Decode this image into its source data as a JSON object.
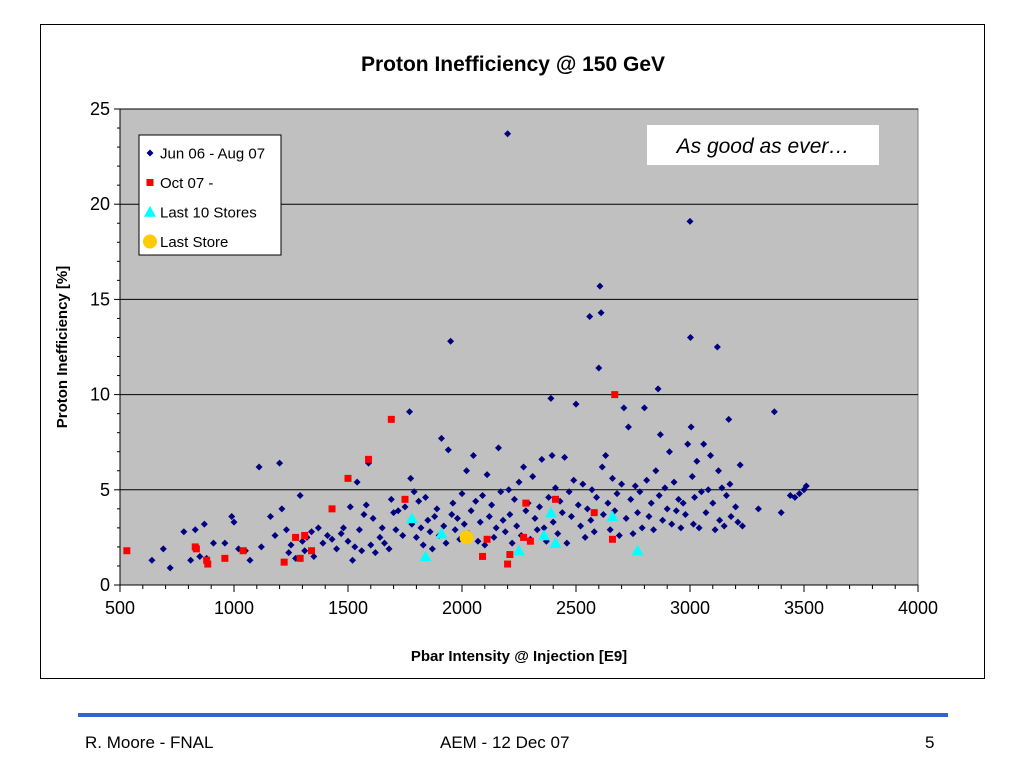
{
  "footer": {
    "author": "R. Moore - FNAL",
    "event": "AEM - 12 Dec 07",
    "page": "5"
  },
  "colors": {
    "plot_bg": "#c0c0c0",
    "series1": "#000080",
    "series2": "#ff0000",
    "series3": "#00ffff",
    "series4": "#ffcc00",
    "footer_rule": "#3366cc"
  },
  "chart_data": {
    "type": "scatter",
    "title": "Proton Inefficiency @ 150 GeV",
    "xlabel": "Pbar Intensity @ Injection  [E9]",
    "ylabel": "Proton Inefficiency  [%]",
    "xlim": [
      500,
      4000
    ],
    "ylim": [
      0,
      25
    ],
    "xticks": [
      "500",
      "1000",
      "1500",
      "2000",
      "2500",
      "3000",
      "3500",
      "4000"
    ],
    "yticks": [
      "0",
      "5",
      "10",
      "15",
      "20",
      "25"
    ],
    "grid": "horizontal",
    "legend_position": "top-left",
    "annotation": "As good as ever…",
    "series": [
      {
        "name": "Jun 06 - Aug 07",
        "marker": "diamond",
        "points": [
          [
            640,
            1.3
          ],
          [
            690,
            1.9
          ],
          [
            720,
            0.9
          ],
          [
            780,
            2.8
          ],
          [
            810,
            1.3
          ],
          [
            830,
            2.9
          ],
          [
            850,
            1.5
          ],
          [
            870,
            3.2
          ],
          [
            880,
            1.4
          ],
          [
            910,
            2.2
          ],
          [
            960,
            2.2
          ],
          [
            990,
            3.6
          ],
          [
            1000,
            3.3
          ],
          [
            1020,
            1.9
          ],
          [
            1050,
            1.8
          ],
          [
            1070,
            1.3
          ],
          [
            1110,
            6.2
          ],
          [
            1120,
            2.0
          ],
          [
            1160,
            3.6
          ],
          [
            1180,
            2.6
          ],
          [
            1200,
            6.4
          ],
          [
            1210,
            4.0
          ],
          [
            1220,
            1.2
          ],
          [
            1230,
            2.9
          ],
          [
            1240,
            1.7
          ],
          [
            1250,
            2.1
          ],
          [
            1270,
            1.4
          ],
          [
            1290,
            4.7
          ],
          [
            1300,
            2.3
          ],
          [
            1310,
            1.8
          ],
          [
            1320,
            2.5
          ],
          [
            1340,
            2.8
          ],
          [
            1350,
            1.5
          ],
          [
            1370,
            3.0
          ],
          [
            1390,
            2.2
          ],
          [
            1410,
            2.6
          ],
          [
            1430,
            2.4
          ],
          [
            1450,
            1.9
          ],
          [
            1470,
            2.7
          ],
          [
            1480,
            3.0
          ],
          [
            1500,
            2.3
          ],
          [
            1510,
            4.1
          ],
          [
            1520,
            1.3
          ],
          [
            1530,
            2.0
          ],
          [
            1540,
            5.4
          ],
          [
            1550,
            2.9
          ],
          [
            1560,
            1.8
          ],
          [
            1570,
            3.7
          ],
          [
            1580,
            4.2
          ],
          [
            1590,
            6.4
          ],
          [
            1600,
            2.1
          ],
          [
            1610,
            3.5
          ],
          [
            1620,
            1.7
          ],
          [
            1640,
            2.5
          ],
          [
            1650,
            3.0
          ],
          [
            1660,
            2.2
          ],
          [
            1680,
            1.9
          ],
          [
            1690,
            4.5
          ],
          [
            1700,
            3.8
          ],
          [
            1710,
            2.9
          ],
          [
            1720,
            3.9
          ],
          [
            1740,
            2.6
          ],
          [
            1750,
            4.1
          ],
          [
            1770,
            9.1
          ],
          [
            1775,
            5.6
          ],
          [
            1780,
            3.2
          ],
          [
            1790,
            4.9
          ],
          [
            1800,
            2.5
          ],
          [
            1810,
            4.4
          ],
          [
            1820,
            3.0
          ],
          [
            1830,
            2.1
          ],
          [
            1840,
            4.6
          ],
          [
            1850,
            3.4
          ],
          [
            1860,
            2.8
          ],
          [
            1870,
            1.9
          ],
          [
            1880,
            3.6
          ],
          [
            1890,
            4.0
          ],
          [
            1900,
            2.6
          ],
          [
            1910,
            7.7
          ],
          [
            1920,
            3.1
          ],
          [
            1930,
            2.2
          ],
          [
            1940,
            7.1
          ],
          [
            1950,
            12.8
          ],
          [
            1955,
            3.7
          ],
          [
            1960,
            4.3
          ],
          [
            1970,
            2.9
          ],
          [
            1980,
            3.5
          ],
          [
            1990,
            2.4
          ],
          [
            2000,
            4.8
          ],
          [
            2010,
            3.2
          ],
          [
            2020,
            6.0
          ],
          [
            2030,
            2.7
          ],
          [
            2040,
            3.9
          ],
          [
            2050,
            6.8
          ],
          [
            2060,
            4.4
          ],
          [
            2070,
            2.3
          ],
          [
            2080,
            3.3
          ],
          [
            2090,
            4.7
          ],
          [
            2100,
            2.1
          ],
          [
            2110,
            5.8
          ],
          [
            2120,
            3.6
          ],
          [
            2130,
            4.2
          ],
          [
            2140,
            2.5
          ],
          [
            2150,
            3.0
          ],
          [
            2160,
            7.2
          ],
          [
            2170,
            4.9
          ],
          [
            2180,
            3.4
          ],
          [
            2190,
            2.8
          ],
          [
            2200,
            23.7
          ],
          [
            2205,
            5.0
          ],
          [
            2210,
            3.7
          ],
          [
            2220,
            2.2
          ],
          [
            2230,
            4.5
          ],
          [
            2240,
            3.1
          ],
          [
            2250,
            5.4
          ],
          [
            2260,
            2.6
          ],
          [
            2270,
            6.2
          ],
          [
            2280,
            3.9
          ],
          [
            2290,
            4.3
          ],
          [
            2300,
            2.4
          ],
          [
            2310,
            5.7
          ],
          [
            2320,
            3.5
          ],
          [
            2330,
            2.9
          ],
          [
            2340,
            4.1
          ],
          [
            2350,
            6.6
          ],
          [
            2360,
            3.0
          ],
          [
            2370,
            2.3
          ],
          [
            2380,
            4.6
          ],
          [
            2390,
            9.8
          ],
          [
            2395,
            6.8
          ],
          [
            2400,
            3.3
          ],
          [
            2410,
            5.1
          ],
          [
            2420,
            2.7
          ],
          [
            2430,
            4.4
          ],
          [
            2440,
            3.8
          ],
          [
            2450,
            6.7
          ],
          [
            2460,
            2.2
          ],
          [
            2470,
            4.9
          ],
          [
            2480,
            3.6
          ],
          [
            2490,
            5.5
          ],
          [
            2500,
            9.5
          ],
          [
            2510,
            4.2
          ],
          [
            2520,
            3.1
          ],
          [
            2530,
            5.3
          ],
          [
            2540,
            2.5
          ],
          [
            2550,
            4.0
          ],
          [
            2560,
            14.1
          ],
          [
            2565,
            3.4
          ],
          [
            2570,
            5.0
          ],
          [
            2580,
            2.8
          ],
          [
            2590,
            4.6
          ],
          [
            2600,
            11.4
          ],
          [
            2605,
            15.7
          ],
          [
            2610,
            14.3
          ],
          [
            2615,
            6.2
          ],
          [
            2620,
            3.7
          ],
          [
            2630,
            6.8
          ],
          [
            2640,
            4.3
          ],
          [
            2650,
            2.9
          ],
          [
            2660,
            5.6
          ],
          [
            2670,
            3.9
          ],
          [
            2680,
            4.8
          ],
          [
            2690,
            2.6
          ],
          [
            2700,
            5.3
          ],
          [
            2710,
            9.3
          ],
          [
            2720,
            3.5
          ],
          [
            2730,
            8.3
          ],
          [
            2740,
            4.5
          ],
          [
            2750,
            2.7
          ],
          [
            2760,
            5.2
          ],
          [
            2770,
            3.8
          ],
          [
            2780,
            4.9
          ],
          [
            2790,
            3.0
          ],
          [
            2800,
            9.3
          ],
          [
            2810,
            5.5
          ],
          [
            2820,
            3.6
          ],
          [
            2830,
            4.3
          ],
          [
            2840,
            2.9
          ],
          [
            2850,
            6.0
          ],
          [
            2860,
            10.3
          ],
          [
            2865,
            4.7
          ],
          [
            2870,
            7.9
          ],
          [
            2880,
            3.4
          ],
          [
            2890,
            5.1
          ],
          [
            2900,
            4.0
          ],
          [
            2910,
            7.0
          ],
          [
            2920,
            3.2
          ],
          [
            2930,
            5.4
          ],
          [
            2940,
            3.9
          ],
          [
            2950,
            4.5
          ],
          [
            2960,
            3.0
          ],
          [
            2970,
            4.3
          ],
          [
            2980,
            3.7
          ],
          [
            2990,
            7.4
          ],
          [
            3000,
            19.1
          ],
          [
            3002,
            13.0
          ],
          [
            3005,
            8.3
          ],
          [
            3010,
            5.7
          ],
          [
            3015,
            3.2
          ],
          [
            3020,
            4.6
          ],
          [
            3030,
            6.5
          ],
          [
            3040,
            3.0
          ],
          [
            3050,
            4.9
          ],
          [
            3060,
            7.4
          ],
          [
            3070,
            3.8
          ],
          [
            3080,
            5.0
          ],
          [
            3090,
            6.8
          ],
          [
            3100,
            4.3
          ],
          [
            3110,
            2.9
          ],
          [
            3120,
            12.5
          ],
          [
            3125,
            6.0
          ],
          [
            3130,
            3.4
          ],
          [
            3140,
            5.1
          ],
          [
            3150,
            3.1
          ],
          [
            3160,
            4.7
          ],
          [
            3170,
            8.7
          ],
          [
            3175,
            5.3
          ],
          [
            3180,
            3.6
          ],
          [
            3200,
            4.1
          ],
          [
            3210,
            3.3
          ],
          [
            3220,
            6.3
          ],
          [
            3230,
            3.1
          ],
          [
            3300,
            4.0
          ],
          [
            3370,
            9.1
          ],
          [
            3400,
            3.8
          ],
          [
            3440,
            4.7
          ],
          [
            3460,
            4.6
          ],
          [
            3480,
            4.8
          ],
          [
            3500,
            5.0
          ],
          [
            3510,
            5.2
          ]
        ]
      },
      {
        "name": "Oct 07 -",
        "marker": "square",
        "points": [
          [
            530,
            1.8
          ],
          [
            830,
            2.0
          ],
          [
            835,
            1.9
          ],
          [
            880,
            1.3
          ],
          [
            885,
            1.1
          ],
          [
            960,
            1.4
          ],
          [
            1040,
            1.8
          ],
          [
            1220,
            1.2
          ],
          [
            1270,
            2.5
          ],
          [
            1290,
            1.4
          ],
          [
            1310,
            2.6
          ],
          [
            1340,
            1.8
          ],
          [
            1430,
            4.0
          ],
          [
            1500,
            5.6
          ],
          [
            1590,
            6.6
          ],
          [
            1690,
            8.7
          ],
          [
            1750,
            4.5
          ],
          [
            2090,
            1.5
          ],
          [
            2110,
            2.4
          ],
          [
            2200,
            1.1
          ],
          [
            2210,
            1.6
          ],
          [
            2270,
            2.5
          ],
          [
            2280,
            4.3
          ],
          [
            2300,
            2.3
          ],
          [
            2410,
            4.5
          ],
          [
            2580,
            3.8
          ],
          [
            2660,
            2.4
          ],
          [
            2670,
            10.0
          ]
        ]
      },
      {
        "name": "Last 10 Stores",
        "marker": "triangle",
        "points": [
          [
            1780,
            3.5
          ],
          [
            1840,
            1.5
          ],
          [
            1910,
            2.7
          ],
          [
            2250,
            1.8
          ],
          [
            2360,
            2.6
          ],
          [
            2390,
            3.8
          ],
          [
            2410,
            2.2
          ],
          [
            2660,
            3.6
          ],
          [
            2770,
            1.8
          ]
        ]
      },
      {
        "name": "Last Store",
        "marker": "circle",
        "points": [
          [
            2020,
            2.5
          ]
        ]
      }
    ]
  }
}
